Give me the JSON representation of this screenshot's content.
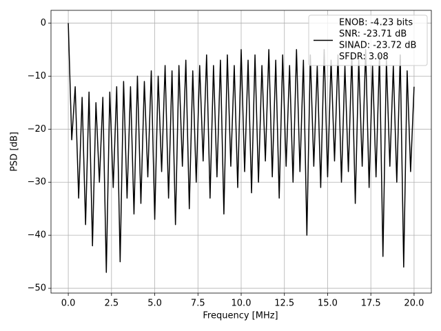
{
  "chart_data": {
    "type": "line",
    "xlabel": "Frequency [MHz]",
    "ylabel": "PSD [dB]",
    "x": [
      0,
      0.2,
      0.4,
      0.6,
      0.8,
      1,
      1.2,
      1.4,
      1.6,
      1.8,
      2,
      2.2,
      2.4,
      2.6,
      2.8,
      3,
      3.2,
      3.4,
      3.6,
      3.8,
      4,
      4.2,
      4.4,
      4.6,
      4.8,
      5,
      5.2,
      5.4,
      5.6,
      5.8,
      6,
      6.2,
      6.4,
      6.6,
      6.8,
      7,
      7.2,
      7.4,
      7.6,
      7.8,
      8,
      8.2,
      8.4,
      8.6,
      8.8,
      9,
      9.2,
      9.4,
      9.6,
      9.8,
      10,
      10.2,
      10.4,
      10.6,
      10.8,
      11,
      11.2,
      11.4,
      11.6,
      11.8,
      12,
      12.2,
      12.4,
      12.6,
      12.8,
      13,
      13.2,
      13.4,
      13.6,
      13.8,
      14,
      14.2,
      14.4,
      14.6,
      14.8,
      15,
      15.2,
      15.4,
      15.6,
      15.8,
      16,
      16.2,
      16.4,
      16.6,
      16.8,
      17,
      17.2,
      17.4,
      17.6,
      17.8,
      18,
      18.2,
      18.4,
      18.6,
      18.8,
      19,
      19.2,
      19.4,
      19.6,
      19.8,
      20
    ],
    "series": [
      {
        "color": "#000000",
        "values": [
          0,
          -22,
          -12,
          -33,
          -14,
          -38,
          -13,
          -42,
          -15,
          -30,
          -14,
          -47,
          -13,
          -31,
          -12,
          -45,
          -11,
          -33,
          -12,
          -36,
          -10,
          -34,
          -11,
          -29,
          -9,
          -37,
          -10,
          -28,
          -8,
          -33,
          -9,
          -38,
          -8,
          -27,
          -7,
          -35,
          -9,
          -30,
          -8,
          -26,
          -6,
          -33,
          -8,
          -29,
          -7,
          -36,
          -6,
          -27,
          -8,
          -31,
          -5,
          -28,
          -7,
          -32,
          -6,
          -30,
          -8,
          -26,
          -5,
          -29,
          -7,
          -33,
          -6,
          -27,
          -8,
          -30,
          -5,
          -28,
          -7,
          -40,
          -6,
          -27,
          -8,
          -31,
          -5,
          -29,
          -7,
          -26,
          -6,
          -30,
          -8,
          -28,
          -6,
          -34,
          -7,
          -27,
          -5,
          -31,
          -8,
          -29,
          -6,
          -44,
          -7,
          -27,
          -8,
          -30,
          -6,
          -46,
          -9,
          -28,
          -12
        ]
      }
    ],
    "legend_text": [
      "ENOB: -4.23 bits",
      "SNR: -23.71 dB",
      "SINAD: -23.72 dB",
      "SFDR: 3.08"
    ],
    "legend": "upper right",
    "xlim": [
      -1,
      21
    ],
    "ylim": [
      -50.9,
      2.4
    ],
    "xticks": [
      {
        "value": 0,
        "label": "0.0"
      },
      {
        "value": 2.5,
        "label": "2.5"
      },
      {
        "value": 5,
        "label": "5.0"
      },
      {
        "value": 7.5,
        "label": "7.5"
      },
      {
        "value": 10,
        "label": "10.0"
      },
      {
        "value": 12.5,
        "label": "12.5"
      },
      {
        "value": 15,
        "label": "15.0"
      },
      {
        "value": 17.5,
        "label": "17.5"
      },
      {
        "value": 20,
        "label": "20.0"
      }
    ],
    "yticks": [
      {
        "value": -50,
        "label": "−50"
      },
      {
        "value": -40,
        "label": "−40"
      },
      {
        "value": -30,
        "label": "−30"
      },
      {
        "value": -20,
        "label": "−20"
      },
      {
        "value": -10,
        "label": "−10"
      },
      0
    ],
    "grid": true
  }
}
